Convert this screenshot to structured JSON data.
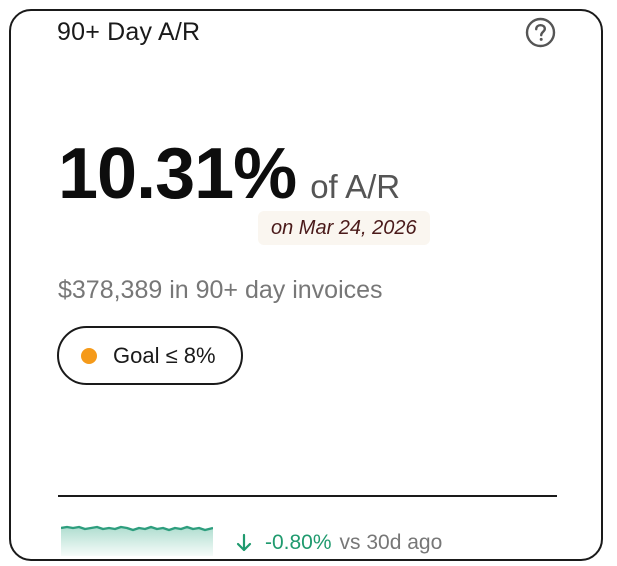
{
  "card": {
    "title": "90+ Day A/R",
    "help_icon": "question-circle-icon",
    "metric": {
      "value": "10.31%",
      "unit": "of A/R"
    },
    "as_of": "on Mar 24, 2026",
    "subtext": "$378,389 in 90+ day invoices",
    "goal": {
      "label": "Goal ≤ 8%",
      "status_color": "#f59a1a"
    },
    "trend": {
      "direction_icon": "arrow-down-icon",
      "delta": "-0.80%",
      "reference": "vs 30d ago",
      "color": "#1f9a6e"
    },
    "sparkline_icon": "sparkline-chart"
  }
}
